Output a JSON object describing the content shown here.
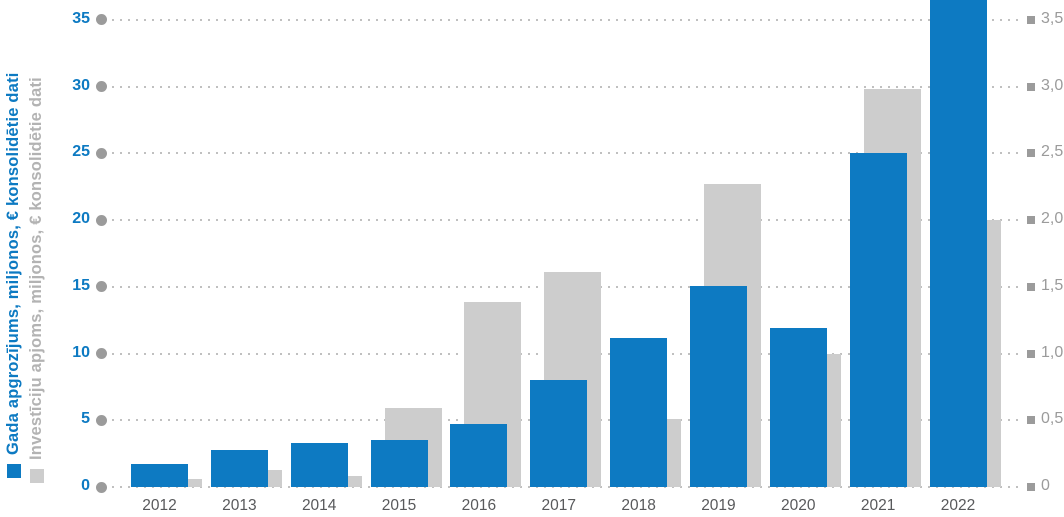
{
  "chart": {
    "left_axis": {
      "title": "Gada apgrozījums, miljonos, € konsolidētie dati",
      "tick_labels": [
        "0",
        "5",
        "10",
        "15",
        "20",
        "25",
        "30",
        "35"
      ],
      "tick_values": [
        0,
        5,
        10,
        15,
        20,
        25,
        30,
        35
      ],
      "color": "#0d7ac2",
      "range": [
        0,
        35
      ]
    },
    "right_axis": {
      "title": "Investīciju apjoms, miljonos, € konsolidētie dati",
      "tick_labels": [
        "0",
        "0,5",
        "1,0",
        "1,5",
        "2,0",
        "2,5",
        "3,0",
        "3,5"
      ],
      "tick_values": [
        0,
        0.5,
        1.0,
        1.5,
        2.0,
        2.5,
        3.0,
        3.5
      ],
      "color": "#9b9b9b",
      "range": [
        0,
        3.5
      ]
    },
    "colors": {
      "turnover_bar": "#0d7ac2",
      "investment_bar": "#cdcdcd",
      "grid_marker": "#9b9b9b",
      "grid_line": "#c0c0c0",
      "year_label": "#58595b"
    }
  },
  "chart_data": {
    "type": "bar",
    "categories": [
      "2012",
      "2013",
      "2014",
      "2015",
      "2016",
      "2017",
      "2018",
      "2019",
      "2020",
      "2021",
      "2022"
    ],
    "series": [
      {
        "name": "Gada apgrozījums, miljonos, € konsolidētie dati",
        "axis": "left",
        "color": "#0d7ac2",
        "values": [
          1.7,
          2.8,
          3.3,
          3.5,
          4.7,
          8.0,
          11.2,
          15.1,
          11.9,
          25.0,
          36.5
        ]
      },
      {
        "name": "Investīciju apjoms, miljonos, € konsolidētie dati",
        "axis": "right",
        "color": "#cdcdcd",
        "values": [
          0.06,
          0.13,
          0.08,
          0.59,
          1.39,
          1.61,
          0.51,
          2.27,
          1.0,
          2.98,
          2.0
        ]
      }
    ],
    "left_ylim": [
      0,
      35
    ],
    "right_ylim": [
      0,
      3.5
    ],
    "grid": "dotted-horizontal",
    "legend_position": "rotated-axis-titles-left",
    "note": "2022 turnover bar extends above the visible plot area (clipped at image top)"
  }
}
